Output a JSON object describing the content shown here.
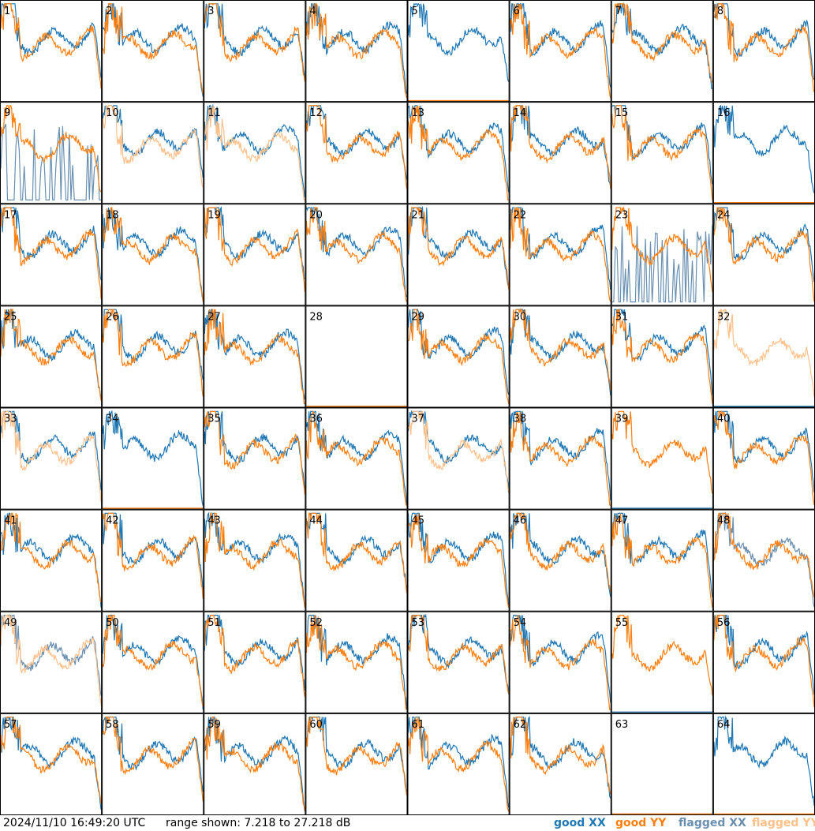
{
  "timestamp": "2024/11/10 16:49:20 UTC",
  "range_text": "range shown: 7.218 to 27.218 dB",
  "legend": [
    {
      "label": "good XX",
      "color": "#1f77b4"
    },
    {
      "label": "good YY",
      "color": "#ff7f0e"
    },
    {
      "label": "flagged XX",
      "color": "#6a8fb0"
    },
    {
      "label": "flagged YY",
      "color": "#ffc08a"
    }
  ],
  "chart_data": {
    "type": "line",
    "title": "",
    "panels": 64,
    "grid": "8x8",
    "range_db": [
      7.218,
      27.218
    ],
    "series": [
      "good XX",
      "good YY",
      "flagged XX",
      "flagged YY"
    ],
    "panel_labels": [
      "1",
      "2",
      "3",
      "4",
      "5",
      "6",
      "7",
      "8",
      "9",
      "10",
      "11",
      "12",
      "13",
      "14",
      "15",
      "16",
      "17",
      "18",
      "19",
      "20",
      "21",
      "22",
      "23",
      "24",
      "25",
      "26",
      "27",
      "28",
      "29",
      "30",
      "31",
      "32",
      "33",
      "34",
      "35",
      "36",
      "37",
      "38",
      "39",
      "40",
      "41",
      "42",
      "43",
      "44",
      "45",
      "46",
      "47",
      "48",
      "49",
      "50",
      "51",
      "52",
      "53",
      "54",
      "55",
      "56",
      "57",
      "58",
      "59",
      "60",
      "61",
      "62",
      "63",
      "64"
    ],
    "panel_status": {
      "5": {
        "yy": "dead"
      },
      "9": {
        "xx": "flagged-dead"
      },
      "10": {
        "yy": "flagged"
      },
      "11": {
        "yy": "flagged"
      },
      "16": {
        "yy": "dead"
      },
      "23": {
        "xx": "flagged-noise"
      },
      "28": {
        "xx": "dead",
        "yy": "dead"
      },
      "32": {
        "yy": "flagged",
        "xx": "dead"
      },
      "33": {
        "yy": "flagged"
      },
      "34": {
        "yy": "dead"
      },
      "37": {
        "yy": "flagged"
      },
      "39": {
        "xx": "dead"
      },
      "48": {
        "xx": "flagged"
      },
      "49": {
        "xx": "flagged",
        "yy": "flagged"
      },
      "55": {
        "xx": "dead"
      },
      "63": {
        "xx": "dead",
        "yy": "dead"
      },
      "64": {
        "yy": "dead"
      }
    }
  }
}
